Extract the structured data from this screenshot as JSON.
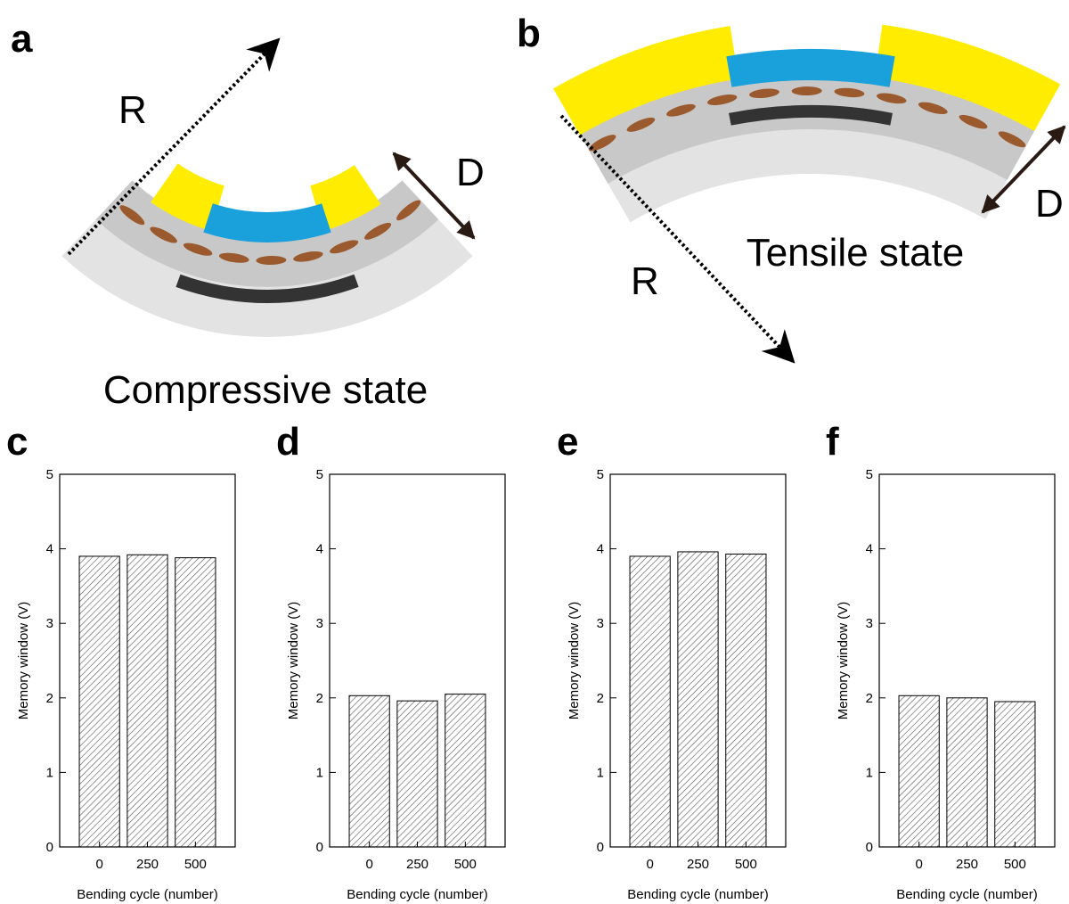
{
  "diagrams": {
    "a": {
      "label": "a",
      "radius": "R",
      "thickness": "D",
      "caption": "Compressive state"
    },
    "b": {
      "label": "b",
      "radius": "R",
      "thickness": "D",
      "caption": "Tensile state"
    }
  },
  "chart_data": [
    {
      "type": "bar",
      "label": "c",
      "categories": [
        "0",
        "250",
        "500"
      ],
      "values": [
        3.9,
        3.92,
        3.88
      ],
      "xlabel": "Bending cycle (number)",
      "ylabel": "Memory window (V)",
      "ylim": [
        0,
        5
      ],
      "yticks": [
        0,
        1,
        2,
        3,
        4,
        5
      ],
      "color": "#555555"
    },
    {
      "type": "bar",
      "label": "d",
      "categories": [
        "0",
        "250",
        "500"
      ],
      "values": [
        2.03,
        1.96,
        2.05
      ],
      "xlabel": "Bending cycle (number)",
      "ylabel": "Memory window (V)",
      "ylim": [
        0,
        5
      ],
      "yticks": [
        0,
        1,
        2,
        3,
        4,
        5
      ],
      "color": "#555555"
    },
    {
      "type": "bar",
      "label": "e",
      "categories": [
        "0",
        "250",
        "500"
      ],
      "values": [
        3.9,
        3.96,
        3.93
      ],
      "xlabel": "Bending cycle (number)",
      "ylabel": "Memory window (V)",
      "ylim": [
        0,
        5
      ],
      "yticks": [
        0,
        1,
        2,
        3,
        4,
        5
      ],
      "color": "#555555"
    },
    {
      "type": "bar",
      "label": "f",
      "categories": [
        "0",
        "250",
        "500"
      ],
      "values": [
        2.03,
        2.0,
        1.95
      ],
      "xlabel": "Bending cycle (number)",
      "ylabel": "Memory window (V)",
      "ylim": [
        0,
        5
      ],
      "yticks": [
        0,
        1,
        2,
        3,
        4,
        5
      ],
      "color": "#555555"
    }
  ]
}
